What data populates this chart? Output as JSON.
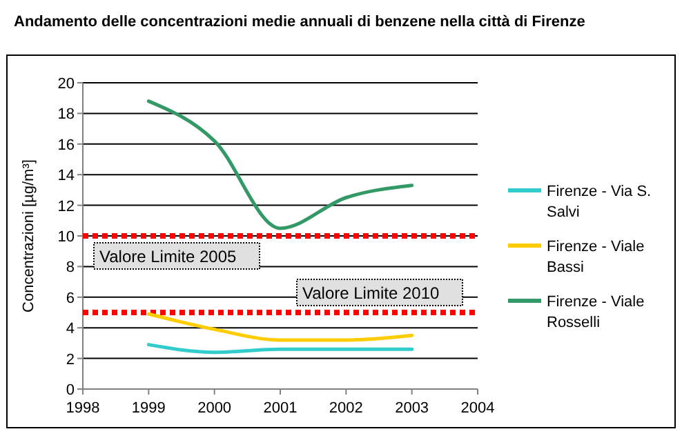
{
  "chart_data": {
    "type": "line",
    "title": "Andamento delle concentrazioni medie annuali di benzene nella città di Firenze",
    "ylabel": "Concentrazioni [µg/m³]",
    "x": [
      1999,
      2000,
      2001,
      2002,
      2003
    ],
    "series": [
      {
        "name": "Firenze - Via S. Salvi",
        "color": "#33cccc",
        "values": [
          2.9,
          2.4,
          2.6,
          2.6,
          2.6
        ]
      },
      {
        "name": "Firenze - Viale Bassi",
        "color": "#ffcc00",
        "values": [
          4.9,
          3.9,
          3.2,
          3.2,
          3.5
        ]
      },
      {
        "name": "Firenze - Viale Rosselli",
        "color": "#339966",
        "values": [
          18.8,
          16.2,
          10.5,
          12.5,
          13.3
        ]
      }
    ],
    "xlim": [
      1998,
      2004
    ],
    "xticks": [
      1998,
      1999,
      2000,
      2001,
      2002,
      2003,
      2004
    ],
    "ylim": [
      0,
      20
    ],
    "yticks": [
      0,
      2,
      4,
      6,
      8,
      10,
      12,
      14,
      16,
      18,
      20
    ],
    "ref_lines": [
      {
        "axis": "y",
        "value": 10,
        "label": "Valore Limite 2005",
        "color": "#ff0000",
        "line_style": "dotted"
      },
      {
        "axis": "y",
        "value": 5,
        "label": "Valore Limite 2010",
        "color": "#ff0000",
        "line_style": "dotted"
      }
    ],
    "grid": "y",
    "legend": "right",
    "marker": "none",
    "line_style": "solid"
  }
}
